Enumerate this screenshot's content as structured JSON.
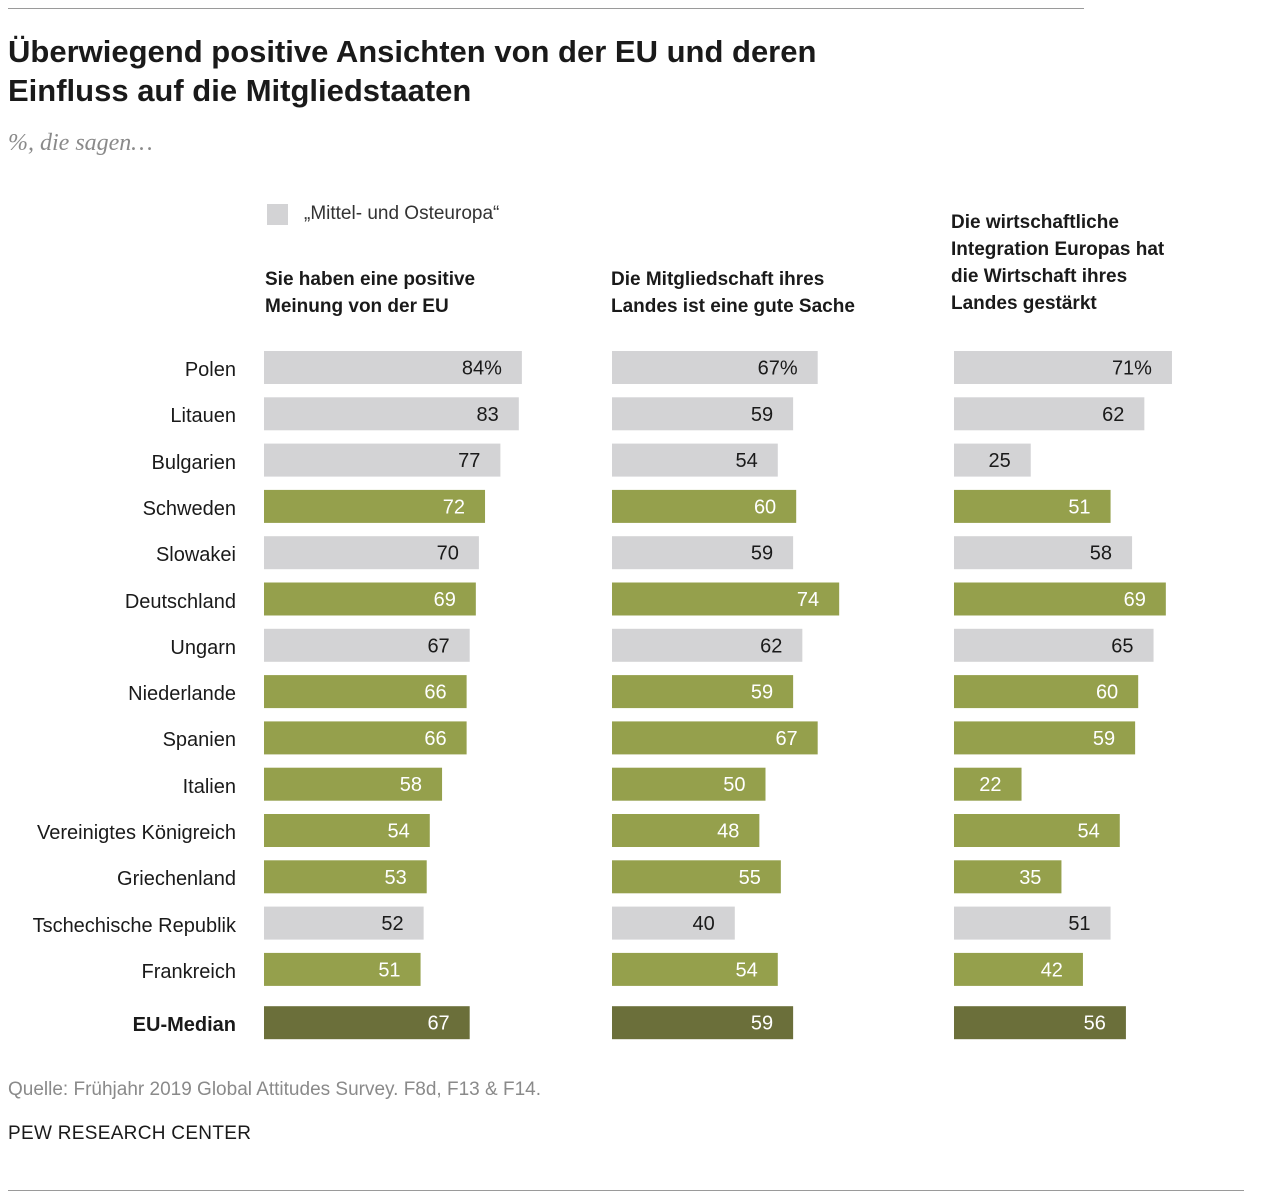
{
  "title": "Überwiegend positive Ansichten von der EU und deren Einfluss auf die Mitgliedstaaten",
  "subtitle": "%, die sagen…",
  "legend": {
    "label": "„Mittel- und Osteuropa“"
  },
  "source": "Quelle: Frühjahr 2019 Global Attitudes Survey. F8d, F13 & F14.",
  "org": "PEW RESEARCH CENTER",
  "colors": {
    "central_eastern": "#d3d3d5",
    "other": "#95a04c",
    "median": "#6b6f3a",
    "text_dark": "#1a1a1a",
    "text_light": "#ffffff"
  },
  "chart_data": {
    "type": "bar",
    "orientation": "horizontal",
    "unit_suffix_first_row": "%",
    "categories": [
      "Polen",
      "Litauen",
      "Bulgarien",
      "Schweden",
      "Slowakei",
      "Deutschland",
      "Ungarn",
      "Niederlande",
      "Spanien",
      "Italien",
      "Vereinigtes Königreich",
      "Griechenland",
      "Tschechische Republik",
      "Frankreich",
      "EU-Median"
    ],
    "group": [
      "central_eastern",
      "central_eastern",
      "central_eastern",
      "other",
      "central_eastern",
      "other",
      "central_eastern",
      "other",
      "other",
      "other",
      "other",
      "other",
      "central_eastern",
      "other",
      "median"
    ],
    "series": [
      {
        "name": "Sie haben eine positive\nMeinung von der EU",
        "values": [
          84,
          83,
          77,
          72,
          70,
          69,
          67,
          66,
          66,
          58,
          54,
          53,
          52,
          51,
          67
        ]
      },
      {
        "name": "Die Mitgliedschaft ihres\nLandes ist eine gute Sache",
        "values": [
          67,
          59,
          54,
          60,
          59,
          74,
          62,
          59,
          67,
          50,
          48,
          55,
          40,
          54,
          59
        ]
      },
      {
        "name": "Die wirtschaftliche\nIntegration Europas hat\ndie Wirtschaft ihres\nLandes gestärkt",
        "values": [
          71,
          62,
          25,
          51,
          58,
          69,
          65,
          60,
          59,
          22,
          54,
          35,
          51,
          42,
          56
        ]
      }
    ],
    "xlim": [
      0,
      100
    ],
    "grid": false,
    "legend_position": "top"
  }
}
